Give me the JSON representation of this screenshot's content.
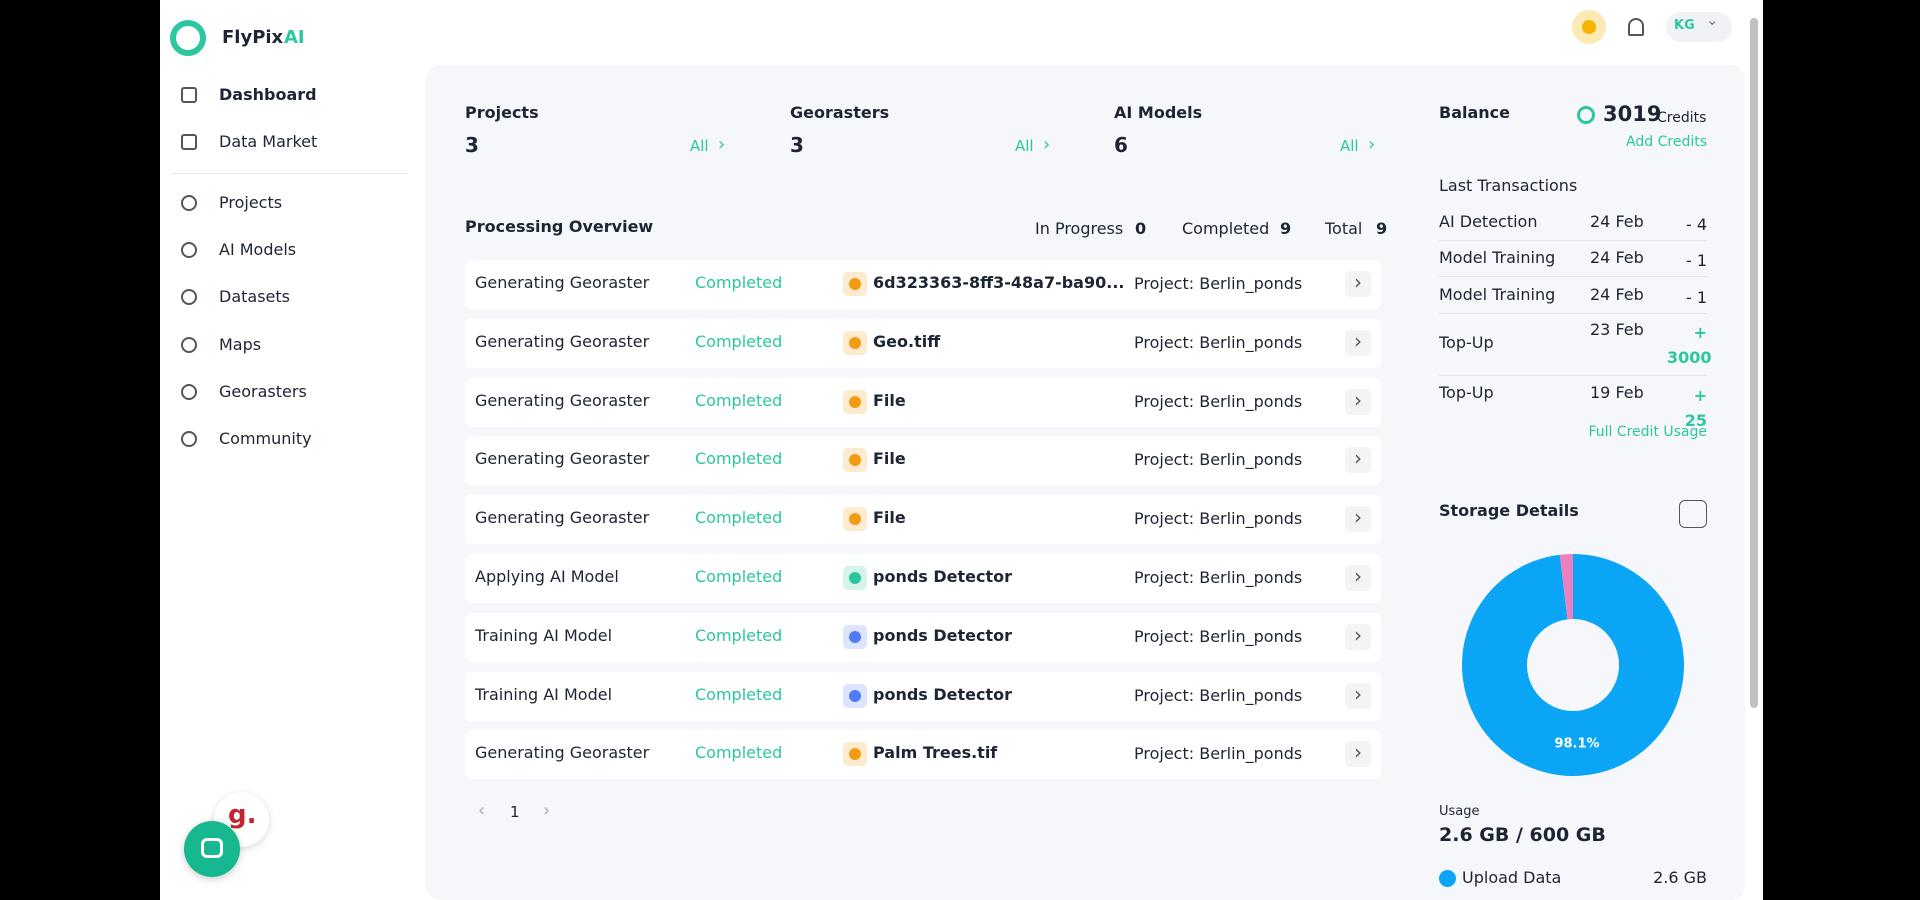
{
  "brand": {
    "name": "FlyPix",
    "suffix": "AI"
  },
  "sidebar": {
    "main": [
      "Dashboard",
      "Data Market"
    ],
    "secondary": [
      "Projects",
      "AI Models",
      "Datasets",
      "Maps",
      "Georasters",
      "Community"
    ]
  },
  "topbar": {
    "avatar": "KG"
  },
  "stats": [
    {
      "label": "Projects",
      "value": 3,
      "link": "All"
    },
    {
      "label": "Georasters",
      "value": 3,
      "link": "All"
    },
    {
      "label": "AI Models",
      "value": 6,
      "link": "All"
    }
  ],
  "processing": {
    "title": "Processing Overview",
    "summary": [
      {
        "label": "In Progress",
        "value": 0
      },
      {
        "label": "Completed",
        "value": 9
      },
      {
        "label": "Total",
        "value": 9
      }
    ],
    "rows": [
      [
        "Generating Georaster",
        "Completed",
        "6d323363-8ff3-48a7-ba90...",
        "Project: Berlin_ponds"
      ],
      [
        "Generating Georaster",
        "Completed",
        "Geo.tiff",
        "Project: Berlin_ponds"
      ],
      [
        "Generating Georaster",
        "Completed",
        "File",
        "Project: Berlin_ponds"
      ],
      [
        "Generating Georaster",
        "Completed",
        "File",
        "Project: Berlin_ponds"
      ],
      [
        "Generating Georaster",
        "Completed",
        "File",
        "Project: Berlin_ponds"
      ],
      [
        "Applying AI Model",
        "Completed",
        "ponds Detector",
        "Project: Berlin_ponds"
      ],
      [
        "Training AI Model",
        "Completed",
        "ponds Detector",
        "Project: Berlin_ponds"
      ],
      [
        "Training AI Model",
        "Completed",
        "ponds Detector",
        "Project: Berlin_ponds"
      ],
      [
        "Generating Georaster",
        "Completed",
        "Palm Trees.tif",
        "Project: Berlin_ponds"
      ]
    ],
    "page": "1"
  },
  "balance": {
    "title": "Balance",
    "credits": "3019",
    "unit": "Credits",
    "add": "Add Credits"
  },
  "transactions": {
    "title": "Last Transactions",
    "rows": [
      [
        "AI Detection",
        "24 Feb",
        "- 4"
      ],
      [
        "Model Training",
        "24 Feb",
        "- 1"
      ],
      [
        "Model Training",
        "24 Feb",
        "- 1"
      ],
      [
        "Top-Up",
        "23 Feb",
        "+ 3000"
      ],
      [
        "Top-Up",
        "19 Feb",
        "+ 25"
      ]
    ],
    "link": "Full Credit Usage"
  },
  "storage": {
    "title": "Storage Details",
    "donut": {
      "values": [
        98.1,
        1.9
      ],
      "value_labels": [
        "98.1%",
        null
      ],
      "colors": [
        "#0aa5f5",
        "#ec7fc0"
      ]
    },
    "usage_label": "Usage",
    "usage": "2.6 GB / 600 GB",
    "legend": {
      "name": "Upload Data",
      "value": "2.6 GB"
    }
  },
  "widget": {
    "badge": "g."
  }
}
